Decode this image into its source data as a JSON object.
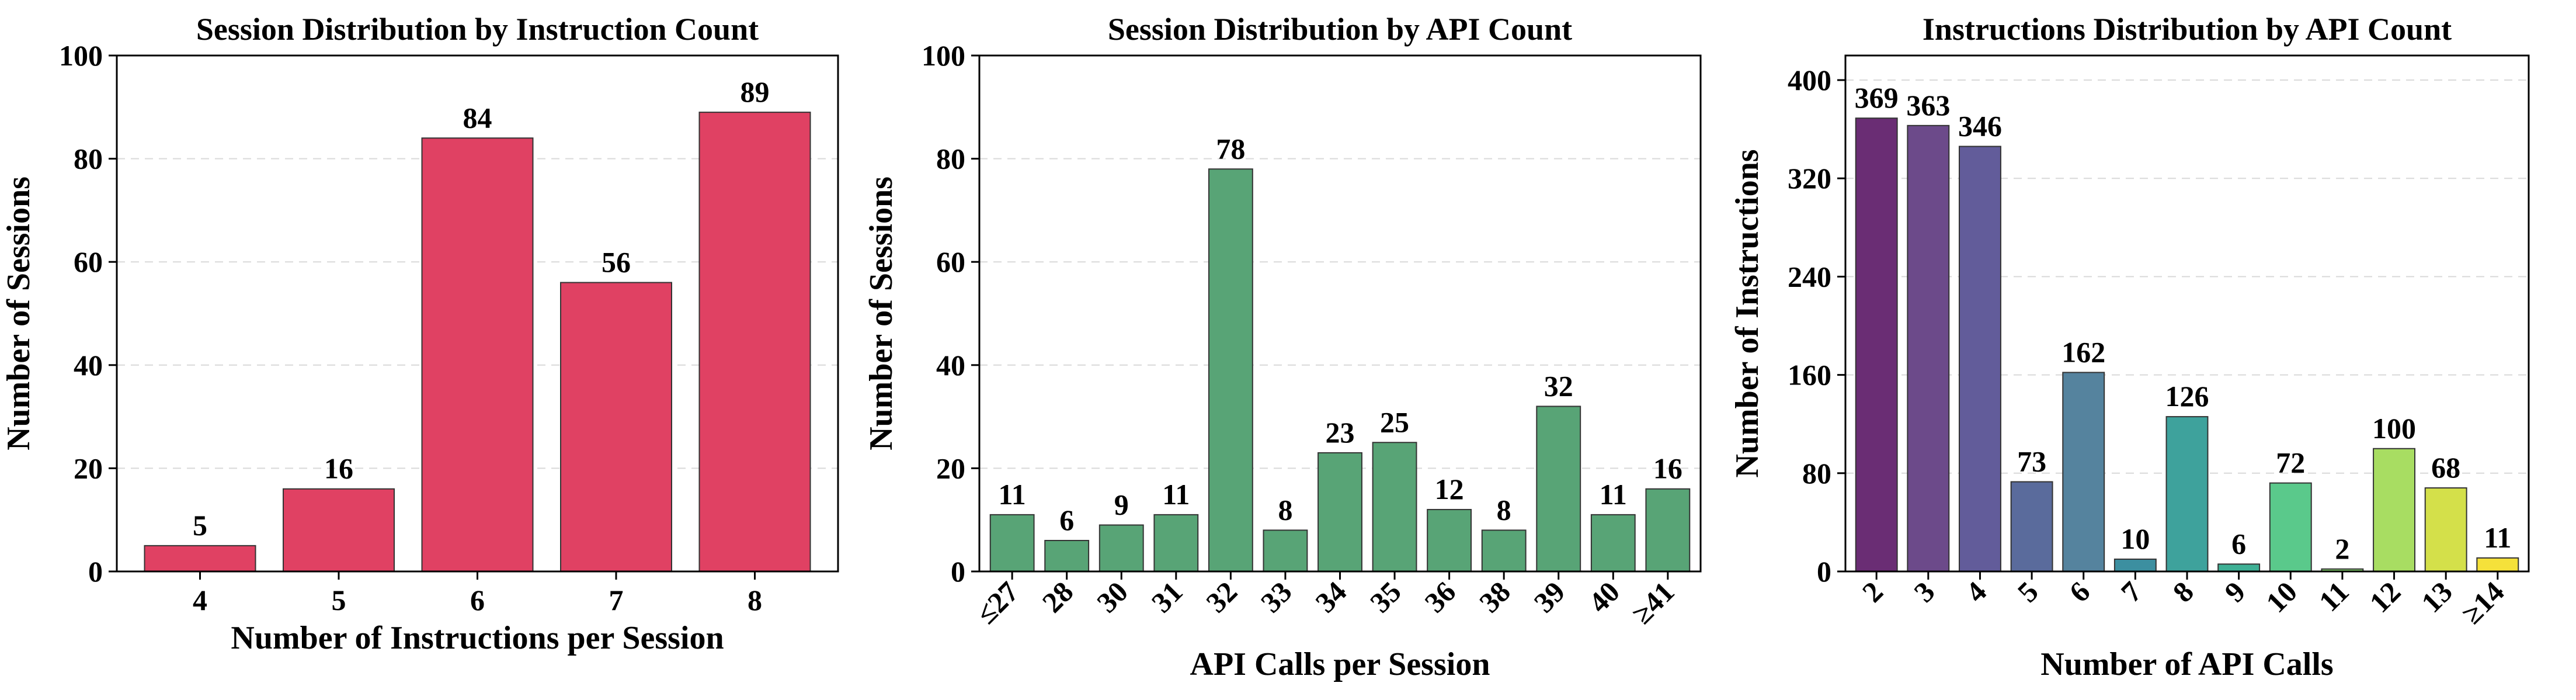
{
  "chart_data": [
    {
      "type": "bar",
      "title": "Session Distribution by Instruction Count",
      "xlabel": "Number of Instructions per Session",
      "ylabel": "Number of Sessions",
      "categories": [
        "4",
        "5",
        "6",
        "7",
        "8"
      ],
      "values": [
        5,
        16,
        84,
        56,
        89
      ],
      "ylim": [
        0,
        100
      ],
      "yticks": [
        0,
        20,
        40,
        60,
        80,
        100
      ],
      "colors": [
        "#e04163"
      ],
      "rotate_ticks": false,
      "grid": "y dashed"
    },
    {
      "type": "bar",
      "title": "Session Distribution by API Count",
      "xlabel": "API Calls per Session",
      "ylabel": "Number of Sessions",
      "categories": [
        "≤27",
        "28",
        "30",
        "31",
        "32",
        "33",
        "34",
        "35",
        "36",
        "38",
        "39",
        "40",
        "≥41"
      ],
      "values": [
        11,
        6,
        9,
        11,
        78,
        8,
        23,
        25,
        12,
        8,
        32,
        11,
        16
      ],
      "ylim": [
        0,
        100
      ],
      "yticks": [
        0,
        20,
        40,
        60,
        80,
        100
      ],
      "colors": [
        "#58a476"
      ],
      "rotate_ticks": true,
      "grid": "y dashed"
    },
    {
      "type": "bar",
      "title": "Instructions Distribution by API Count",
      "xlabel": "Number of API Calls",
      "ylabel": "Number of Instructions",
      "categories": [
        "2",
        "3",
        "4",
        "5",
        "6",
        "7",
        "8",
        "9",
        "10",
        "11",
        "12",
        "13",
        "≥14"
      ],
      "values": [
        369,
        363,
        346,
        73,
        162,
        10,
        126,
        6,
        72,
        2,
        100,
        68,
        11
      ],
      "ylim": [
        0,
        420
      ],
      "yticks": [
        0,
        80,
        160,
        240,
        320,
        400
      ],
      "colors": [
        "#6a2d74",
        "#6c4a8a",
        "#625c9a",
        "#5a6b9c",
        "#55839e",
        "#3c8fa0",
        "#3ea29c",
        "#3eb095",
        "#5ac98b",
        "#86d46e",
        "#a8dd62",
        "#d4e04a",
        "#f5e13a"
      ],
      "rotate_ticks": true,
      "grid": "y dashed"
    }
  ]
}
